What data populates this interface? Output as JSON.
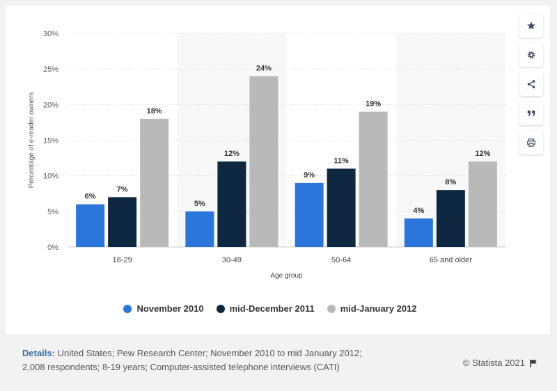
{
  "chart_data": {
    "type": "bar",
    "categories": [
      "18-29",
      "30-49",
      "50-64",
      "65 and older"
    ],
    "series": [
      {
        "name": "November 2010",
        "color": "#2a76dd",
        "values": [
          6,
          5,
          9,
          4
        ]
      },
      {
        "name": "mid-December 2011",
        "color": "#0f2841",
        "values": [
          7,
          12,
          11,
          8
        ]
      },
      {
        "name": "mid-January 2012",
        "color": "#b9b9b9",
        "values": [
          18,
          24,
          19,
          12
        ]
      }
    ],
    "value_labels": [
      [
        "6%",
        "5%",
        "9%",
        "4%"
      ],
      [
        "7%",
        "12%",
        "11%",
        "8%"
      ],
      [
        "18%",
        "24%",
        "19%",
        "12%"
      ]
    ],
    "xlabel": "Age group",
    "ylabel": "Percentage of e-reader owners",
    "ylim": [
      0,
      30
    ],
    "yticks": [
      0,
      5,
      10,
      15,
      20,
      25,
      30
    ],
    "ytick_labels": [
      "0%",
      "5%",
      "10%",
      "15%",
      "20%",
      "25%",
      "30%"
    ],
    "grid": true,
    "legend_position": "bottom"
  },
  "sidebar": {
    "icons": [
      "star-icon",
      "gear-icon",
      "share-icon",
      "quote-icon",
      "print-icon"
    ]
  },
  "footer": {
    "details_label": "Details:",
    "details_text": "United States; Pew Research Center; November 2010 to mid January 2012; 2,008 respondents; 8-19 years; Computer-assisted telephone interviews (CATI)",
    "credit": "© Statista 2021"
  }
}
